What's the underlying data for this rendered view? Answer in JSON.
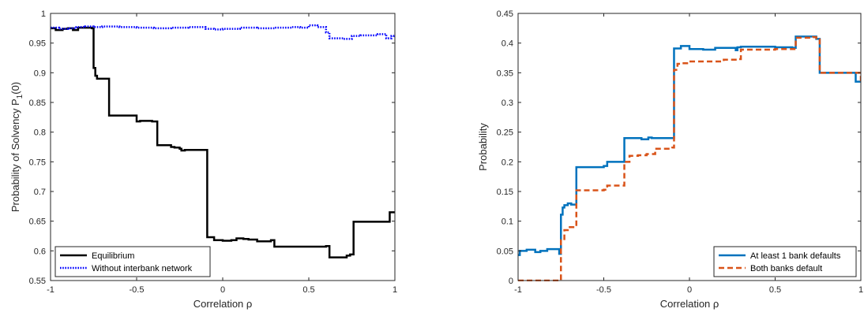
{
  "chart_data": [
    {
      "type": "line",
      "xlabel": "Correlation ρ",
      "ylabel": "Probability of Solvency P_1(0)",
      "xlim": [
        -1,
        1
      ],
      "ylim": [
        0.55,
        1
      ],
      "xticks": [
        -1,
        -0.5,
        0,
        0.5,
        1
      ],
      "yticks": [
        0.55,
        0.6,
        0.65,
        0.7,
        0.75,
        0.8,
        0.85,
        0.9,
        0.95,
        1
      ],
      "legend_position": "bottom-left",
      "series": [
        {
          "name": "Equilibrium",
          "color": "#000000",
          "style": "solid",
          "step": true,
          "x": [
            -1,
            -0.97,
            -0.93,
            -0.9,
            -0.87,
            -0.84,
            -0.81,
            -0.76,
            -0.75,
            -0.74,
            -0.73,
            -0.7,
            -0.66,
            -0.5,
            -0.48,
            -0.41,
            -0.38,
            -0.3,
            -0.28,
            -0.25,
            -0.24,
            -0.22,
            -0.1,
            -0.09,
            -0.05,
            0.0,
            0.05,
            0.08,
            0.12,
            0.15,
            0.2,
            0.27,
            0.28,
            0.3,
            0.5,
            0.6,
            0.62,
            0.72,
            0.74,
            0.76,
            0.8,
            0.97,
            1
          ],
          "y": [
            0.975,
            0.972,
            0.974,
            0.975,
            0.972,
            0.976,
            0.976,
            0.975,
            0.908,
            0.895,
            0.89,
            0.89,
            0.828,
            0.818,
            0.819,
            0.818,
            0.778,
            0.775,
            0.774,
            0.772,
            0.769,
            0.77,
            0.77,
            0.623,
            0.618,
            0.617,
            0.618,
            0.621,
            0.62,
            0.619,
            0.616,
            0.616,
            0.618,
            0.607,
            0.607,
            0.608,
            0.589,
            0.592,
            0.594,
            0.649,
            0.649,
            0.665,
            0.665
          ]
        },
        {
          "name": "Without interbank network",
          "color": "#0000ff",
          "style": "dotted",
          "step": true,
          "x": [
            -1,
            -0.95,
            -0.9,
            -0.85,
            -0.8,
            -0.75,
            -0.7,
            -0.6,
            -0.5,
            -0.4,
            -0.3,
            -0.2,
            -0.1,
            -0.05,
            0.0,
            0.1,
            0.2,
            0.3,
            0.4,
            0.45,
            0.5,
            0.55,
            0.6,
            0.62,
            0.7,
            0.75,
            0.8,
            0.9,
            0.95,
            0.98,
            1
          ],
          "y": [
            0.976,
            0.974,
            0.975,
            0.977,
            0.978,
            0.977,
            0.978,
            0.977,
            0.976,
            0.975,
            0.976,
            0.977,
            0.974,
            0.973,
            0.974,
            0.976,
            0.975,
            0.976,
            0.977,
            0.976,
            0.98,
            0.977,
            0.968,
            0.958,
            0.957,
            0.962,
            0.963,
            0.965,
            0.958,
            0.962,
            0.96
          ]
        }
      ]
    },
    {
      "type": "line",
      "xlabel": "Correlation ρ",
      "ylabel": "Probability",
      "xlim": [
        -1,
        1
      ],
      "ylim": [
        0,
        0.45
      ],
      "xticks": [
        -1,
        -0.5,
        0,
        0.5,
        1
      ],
      "yticks": [
        0,
        0.05,
        0.1,
        0.15,
        0.2,
        0.25,
        0.3,
        0.35,
        0.4,
        0.45
      ],
      "legend_position": "bottom-right",
      "series": [
        {
          "name": "At least 1 bank defaults",
          "color": "#0072bd",
          "style": "solid",
          "step": true,
          "x": [
            -1,
            -0.99,
            -0.95,
            -0.9,
            -0.87,
            -0.83,
            -0.81,
            -0.76,
            -0.75,
            -0.74,
            -0.73,
            -0.71,
            -0.69,
            -0.66,
            -0.5,
            -0.48,
            -0.41,
            -0.38,
            -0.3,
            -0.28,
            -0.25,
            -0.24,
            -0.22,
            -0.1,
            -0.09,
            -0.05,
            0.0,
            0.05,
            0.08,
            0.12,
            0.15,
            0.2,
            0.27,
            0.28,
            0.3,
            0.5,
            0.6,
            0.62,
            0.72,
            0.74,
            0.76,
            0.8,
            0.97,
            1
          ],
          "y": [
            0.043,
            0.05,
            0.052,
            0.048,
            0.05,
            0.053,
            0.053,
            0.045,
            0.111,
            0.123,
            0.127,
            0.13,
            0.128,
            0.191,
            0.193,
            0.2,
            0.2,
            0.24,
            0.24,
            0.238,
            0.238,
            0.241,
            0.24,
            0.24,
            0.391,
            0.395,
            0.39,
            0.39,
            0.389,
            0.389,
            0.392,
            0.392,
            0.388,
            0.393,
            0.394,
            0.393,
            0.392,
            0.411,
            0.411,
            0.407,
            0.35,
            0.35,
            0.335,
            0.335
          ]
        },
        {
          "name": "Both banks default",
          "color": "#d95319",
          "style": "dashed",
          "step": true,
          "x": [
            -1,
            -0.76,
            -0.75,
            -0.73,
            -0.71,
            -0.69,
            -0.66,
            -0.5,
            -0.48,
            -0.41,
            -0.38,
            -0.35,
            -0.3,
            -0.25,
            -0.2,
            -0.1,
            -0.09,
            -0.07,
            -0.05,
            0.0,
            0.1,
            0.2,
            0.28,
            0.3,
            0.4,
            0.5,
            0.6,
            0.62,
            0.72,
            0.74,
            0.76,
            0.97,
            1
          ],
          "y": [
            0,
            0,
            0.068,
            0.085,
            0.09,
            0.09,
            0.152,
            0.153,
            0.16,
            0.16,
            0.2,
            0.21,
            0.211,
            0.213,
            0.222,
            0.224,
            0.355,
            0.365,
            0.366,
            0.369,
            0.369,
            0.372,
            0.373,
            0.389,
            0.389,
            0.39,
            0.39,
            0.409,
            0.41,
            0.406,
            0.35,
            0.35,
            0.335
          ]
        }
      ]
    }
  ]
}
